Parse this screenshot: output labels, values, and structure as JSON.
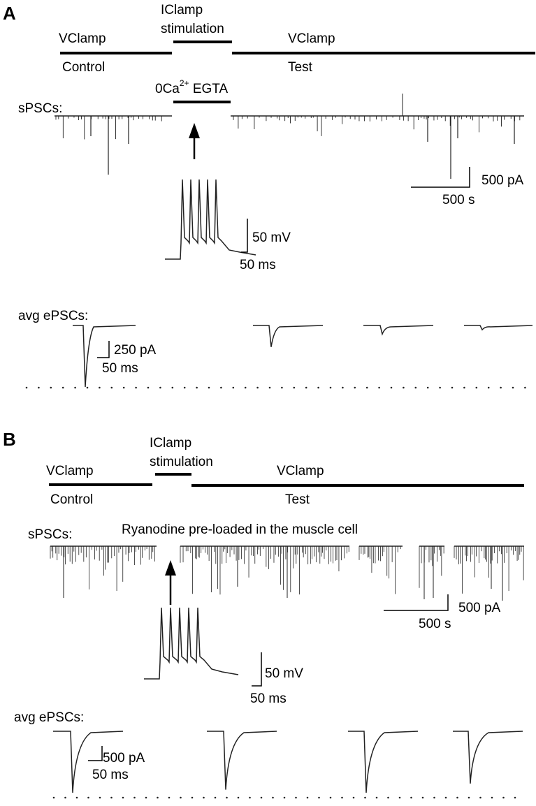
{
  "panels": [
    {
      "letter": "A",
      "protocol": {
        "vclamp_left": "VClamp",
        "iclamp_line1": "IClamp",
        "iclamp_line2": "stimulation",
        "vclamp_right": "VClamp",
        "control": "Control",
        "test": "Test"
      },
      "treatment": {
        "prefix": "0Ca",
        "superscript": "2+",
        "suffix": " EGTA"
      },
      "spsc_label": "sPSCs:",
      "spsc_scale": {
        "current": "500 pA",
        "time": "500 s"
      },
      "ap_scale": {
        "voltage": "50 mV",
        "time": "50 ms"
      },
      "epsc_label": "avg ePSCs:",
      "epsc_scale": {
        "current": "250 pA",
        "time": "50 ms"
      },
      "epsc_amplitudes_relative": [
        1.0,
        0.35,
        0.14,
        0.07
      ]
    },
    {
      "letter": "B",
      "protocol": {
        "vclamp_left": "VClamp",
        "iclamp_line1": "IClamp",
        "iclamp_line2": "stimulation",
        "vclamp_right": "VClamp",
        "control": "Control",
        "test": "Test"
      },
      "treatment": {
        "text": "Ryanodine pre-loaded in the muscle cell"
      },
      "spsc_label": "sPSCs:",
      "spsc_scale": {
        "current": "500 pA",
        "time": "500 s"
      },
      "ap_scale": {
        "voltage": "50 mV",
        "time": "50 ms"
      },
      "epsc_label": "avg ePSCs:",
      "epsc_scale": {
        "current": "500 pA",
        "time": "50 ms"
      },
      "epsc_amplitudes_relative": [
        1.0,
        0.95,
        1.0,
        0.85
      ]
    }
  ],
  "colors": {
    "ink": "#000000",
    "trace": "#222222"
  }
}
